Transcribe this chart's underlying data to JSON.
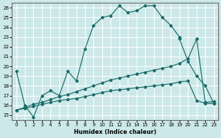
{
  "bg_color": "#cce8e8",
  "line_color": "#1a6b6b",
  "grid_color": "#ffffff",
  "xlabel": "Humidex (Indice chaleur)",
  "xlim": [
    -0.5,
    23.5
  ],
  "ylim": [
    14.5,
    26.5
  ],
  "xticks": [
    0,
    1,
    2,
    3,
    4,
    5,
    6,
    7,
    8,
    9,
    10,
    11,
    12,
    13,
    14,
    15,
    16,
    17,
    18,
    19,
    20,
    21,
    22,
    23
  ],
  "yticks": [
    15,
    16,
    17,
    18,
    19,
    20,
    21,
    22,
    23,
    24,
    25,
    26
  ],
  "curves": [
    {
      "x": [
        0,
        1,
        2,
        3,
        4,
        5,
        6,
        7,
        8,
        9,
        10,
        11,
        12,
        13,
        14,
        15,
        16,
        17,
        18,
        19
      ],
      "y": [
        19.5,
        16.0,
        14.8,
        17.0,
        17.5,
        17.0,
        19.5,
        18.5,
        21.8,
        24.2,
        25.0,
        25.2,
        26.2,
        25.5,
        25.7,
        26.2,
        26.2,
        25.0,
        24.2,
        23.0
      ]
    },
    {
      "x": [
        19,
        20,
        21,
        22,
        23
      ],
      "y": [
        22.8,
        20.5,
        19.0,
        18.0,
        16.2
      ]
    },
    {
      "x": [
        0,
        1,
        2,
        3,
        4,
        5,
        6,
        7,
        8,
        9,
        10,
        11,
        12,
        13,
        14,
        15,
        16,
        17,
        18,
        19,
        20,
        21,
        22,
        23
      ],
      "y": [
        15.5,
        15.7,
        15.9,
        16.1,
        16.3,
        16.5,
        16.6,
        16.7,
        16.9,
        17.1,
        17.3,
        17.5,
        17.6,
        17.7,
        17.8,
        17.9,
        18.0,
        18.1,
        18.2,
        18.4,
        18.5,
        16.5,
        16.2,
        16.2
      ]
    },
    {
      "x": [
        0,
        1,
        2,
        3,
        4,
        5,
        6,
        7,
        8,
        9,
        10,
        11,
        12,
        13,
        14,
        15,
        16,
        17,
        18,
        19,
        20,
        21,
        22,
        23
      ],
      "y": [
        15.5,
        15.8,
        16.1,
        16.3,
        16.6,
        16.9,
        17.1,
        17.4,
        17.7,
        18.0,
        18.3,
        18.6,
        18.8,
        19.0,
        19.2,
        19.4,
        19.6,
        19.8,
        20.0,
        20.3,
        20.8,
        22.8,
        16.3,
        16.4
      ]
    }
  ]
}
